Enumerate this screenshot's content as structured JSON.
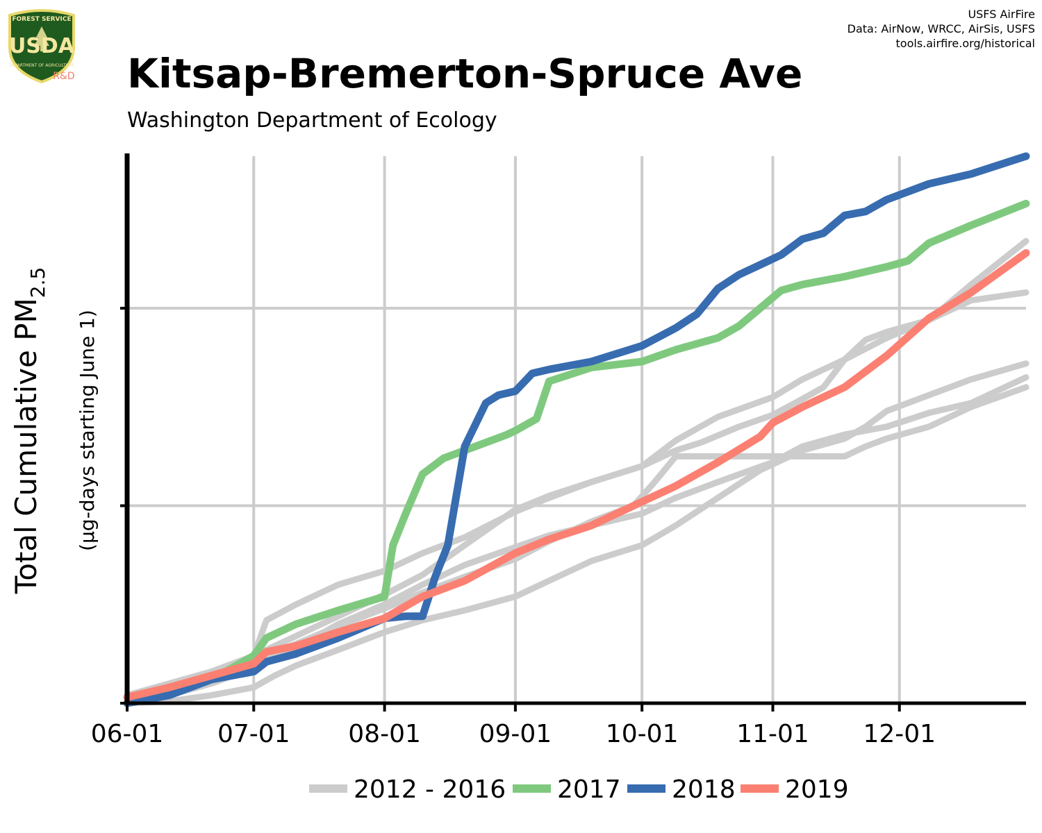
{
  "logo": {
    "top_text": "FOREST SERVICE",
    "letters": "USDA",
    "bottom_text": "DEPARTMENT OF AGRICULTURE",
    "tag": "R&D"
  },
  "credits": [
    "USFS AirFire",
    "Data: AirNow, WRCC, AirSis, USFS",
    "tools.airfire.org/historical"
  ],
  "colors": {
    "historical": "#cccccc",
    "y2017": "#7fc97f",
    "y2018": "#386cb0",
    "y2019": "#fb8072",
    "grid": "#cccccc",
    "axis": "#000000"
  },
  "chart_data": {
    "type": "line",
    "title": "Kitsap-Bremerton-Spruce Ave",
    "subtitle": "Washington Department of Ecology",
    "ylabel": "Total Cumulative PM",
    "ylabel_sub": "2.5",
    "ylabel2": "(µg-days starting June 1)",
    "xlabel": "",
    "x_ticks": [
      "06-01",
      "07-01",
      "08-01",
      "09-01",
      "10-01",
      "11-01",
      "12-01"
    ],
    "x_tick_days": [
      0,
      30,
      61,
      92,
      122,
      153,
      183
    ],
    "xlim": [
      0,
      213
    ],
    "ylim": [
      0,
      2.77
    ],
    "y_ticks": [
      0,
      1,
      2
    ],
    "grid": true,
    "legend": {
      "placement": "bottom",
      "entries": [
        "2012 - 2016",
        "2017",
        "2018",
        "2019"
      ]
    },
    "series": [
      {
        "name": "2012 - 2016",
        "role": "historical",
        "x": [
          0,
          10,
          20,
          30,
          33,
          40,
          50,
          61,
          70,
          80,
          92,
          100,
          110,
          122,
          130,
          136,
          145,
          153,
          160,
          165,
          170,
          175,
          180,
          190,
          200,
          213
        ],
        "y": [
          0.04,
          0.1,
          0.16,
          0.24,
          0.42,
          0.5,
          0.6,
          0.67,
          0.76,
          0.84,
          0.97,
          1.04,
          1.12,
          1.2,
          1.28,
          1.32,
          1.4,
          1.46,
          1.54,
          1.6,
          1.74,
          1.84,
          1.88,
          1.94,
          2.12,
          2.34
        ]
      },
      {
        "name": "2012 - 2016",
        "role": "historical",
        "x": [
          0,
          10,
          20,
          30,
          40,
          50,
          61,
          70,
          80,
          92,
          100,
          110,
          122,
          130,
          140,
          153,
          160,
          170,
          180,
          190,
          200,
          213
        ],
        "y": [
          0.03,
          0.08,
          0.15,
          0.24,
          0.34,
          0.44,
          0.55,
          0.65,
          0.8,
          0.98,
          1.05,
          1.12,
          1.2,
          1.33,
          1.45,
          1.55,
          1.64,
          1.74,
          1.85,
          1.94,
          2.04,
          2.08
        ]
      },
      {
        "name": "2012 - 2016",
        "role": "historical",
        "x": [
          0,
          10,
          20,
          30,
          40,
          50,
          61,
          70,
          80,
          92,
          100,
          110,
          120,
          125,
          130,
          140,
          145,
          150,
          153,
          160,
          165,
          170,
          175,
          180,
          190,
          200,
          213
        ],
        "y": [
          0.02,
          0.06,
          0.13,
          0.22,
          0.3,
          0.39,
          0.48,
          0.56,
          0.64,
          0.73,
          0.82,
          0.92,
          1.0,
          1.12,
          1.25,
          1.25,
          1.25,
          1.25,
          1.25,
          1.25,
          1.25,
          1.25,
          1.3,
          1.34,
          1.4,
          1.5,
          1.6
        ]
      },
      {
        "name": "2012 - 2016",
        "role": "historical",
        "x": [
          0,
          10,
          20,
          30,
          40,
          50,
          61,
          70,
          80,
          92,
          100,
          110,
          122,
          130,
          140,
          153,
          160,
          170,
          180,
          190,
          200,
          213
        ],
        "y": [
          0.01,
          0.04,
          0.1,
          0.18,
          0.28,
          0.4,
          0.5,
          0.6,
          0.7,
          0.79,
          0.85,
          0.9,
          0.96,
          1.04,
          1.12,
          1.22,
          1.3,
          1.36,
          1.4,
          1.47,
          1.52,
          1.65
        ]
      },
      {
        "name": "2012 - 2016",
        "role": "historical",
        "x": [
          0,
          10,
          20,
          30,
          35,
          40,
          50,
          61,
          70,
          80,
          92,
          100,
          110,
          122,
          130,
          140,
          150,
          160,
          170,
          175,
          180,
          190,
          200,
          213
        ],
        "y": [
          0.0,
          0.01,
          0.04,
          0.08,
          0.14,
          0.19,
          0.27,
          0.36,
          0.42,
          0.47,
          0.54,
          0.62,
          0.72,
          0.8,
          0.9,
          1.04,
          1.18,
          1.28,
          1.34,
          1.4,
          1.48,
          1.56,
          1.64,
          1.72
        ]
      },
      {
        "name": "2017",
        "role": "y2017",
        "x": [
          0,
          10,
          20,
          30,
          33,
          40,
          50,
          61,
          63,
          66,
          70,
          75,
          80,
          90,
          92,
          97,
          100,
          110,
          122,
          130,
          140,
          145,
          150,
          155,
          160,
          170,
          180,
          185,
          190,
          200,
          213
        ],
        "y": [
          0.0,
          0.05,
          0.12,
          0.24,
          0.33,
          0.4,
          0.47,
          0.54,
          0.8,
          0.96,
          1.16,
          1.24,
          1.28,
          1.36,
          1.38,
          1.44,
          1.63,
          1.7,
          1.73,
          1.79,
          1.85,
          1.91,
          2.0,
          2.09,
          2.12,
          2.16,
          2.21,
          2.24,
          2.33,
          2.42,
          2.53
        ]
      },
      {
        "name": "2018",
        "role": "y2018",
        "x": [
          0,
          10,
          20,
          30,
          33,
          40,
          50,
          61,
          66,
          70,
          73,
          76,
          80,
          85,
          88,
          92,
          96,
          100,
          110,
          122,
          130,
          135,
          140,
          145,
          150,
          155,
          160,
          165,
          170,
          175,
          180,
          190,
          200,
          213
        ],
        "y": [
          0.0,
          0.04,
          0.12,
          0.16,
          0.21,
          0.25,
          0.33,
          0.43,
          0.44,
          0.44,
          0.64,
          0.8,
          1.3,
          1.52,
          1.56,
          1.58,
          1.67,
          1.69,
          1.73,
          1.81,
          1.9,
          1.97,
          2.1,
          2.17,
          2.22,
          2.27,
          2.35,
          2.38,
          2.47,
          2.49,
          2.55,
          2.63,
          2.68,
          2.77
        ]
      },
      {
        "name": "2019",
        "role": "y2019",
        "x": [
          0,
          10,
          20,
          30,
          33,
          40,
          50,
          61,
          70,
          80,
          92,
          100,
          110,
          122,
          130,
          140,
          150,
          153,
          160,
          170,
          180,
          190,
          200,
          213
        ],
        "y": [
          0.03,
          0.08,
          0.14,
          0.2,
          0.26,
          0.29,
          0.36,
          0.43,
          0.54,
          0.62,
          0.76,
          0.83,
          0.9,
          1.02,
          1.1,
          1.22,
          1.35,
          1.42,
          1.5,
          1.6,
          1.76,
          1.95,
          2.08,
          2.28
        ]
      }
    ]
  }
}
